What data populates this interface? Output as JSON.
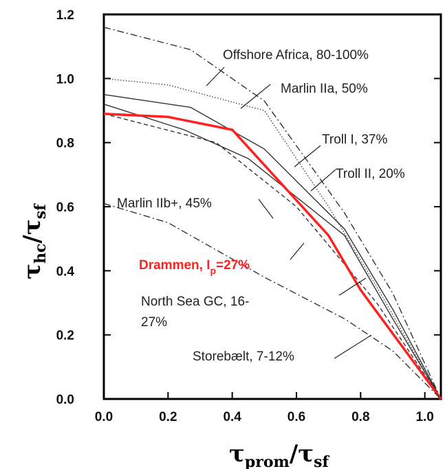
{
  "chart_data": {
    "type": "line",
    "xlabel": {
      "main": "τ",
      "sub": "prom",
      "sep": "/τ",
      "sub2": "sf"
    },
    "ylabel": {
      "main": "τ",
      "sub": "hc",
      "sep": "/τ",
      "sub2": "sf"
    },
    "xlim": [
      0,
      1.05
    ],
    "ylim": [
      0,
      1.2
    ],
    "xticks": [
      "0.0",
      "0.2",
      "0.4",
      "0.6",
      "0.8",
      "1.0"
    ],
    "yticks": [
      "0.0",
      "0.2",
      "0.4",
      "0.6",
      "0.8",
      "1.0",
      "1.2"
    ],
    "grid": false,
    "series": [
      {
        "name": "Offshore Africa, 80-100%",
        "style": "dashdot",
        "color": "#333333",
        "x": [
          0,
          0.27,
          0.5,
          0.75,
          0.9,
          1.05
        ],
        "y": [
          1.16,
          1.09,
          0.93,
          0.58,
          0.33,
          0
        ]
      },
      {
        "name": "Marlin IIa, 50%",
        "style": "dotted",
        "color": "#444444",
        "x": [
          0,
          0.2,
          0.5,
          0.7,
          0.85,
          1.05
        ],
        "y": [
          1.0,
          0.98,
          0.9,
          0.6,
          0.35,
          0
        ]
      },
      {
        "name": "Troll I, 37%",
        "style": "solid",
        "color": "#333333",
        "x": [
          0,
          0.27,
          0.5,
          0.75,
          0.9,
          1.05
        ],
        "y": [
          0.95,
          0.91,
          0.78,
          0.53,
          0.28,
          0
        ]
      },
      {
        "name": "Troll II, 20%",
        "style": "solid",
        "color": "#333333",
        "x": [
          0,
          0.25,
          0.45,
          0.75,
          0.9,
          1.05
        ],
        "y": [
          0.92,
          0.84,
          0.75,
          0.51,
          0.25,
          0
        ]
      },
      {
        "name": "Marlin IIb+, 45%",
        "style": "dashed",
        "color": "#333333",
        "x": [
          0,
          0.35,
          0.6,
          0.85,
          1.05
        ],
        "y": [
          0.89,
          0.8,
          0.6,
          0.3,
          0
        ]
      },
      {
        "name": "Drammen, Iₚ=27%",
        "style": "solid-thick",
        "color": "#ff2020",
        "x": [
          0,
          0.2,
          0.4,
          0.7,
          0.8,
          1.05
        ],
        "y": [
          0.89,
          0.88,
          0.84,
          0.51,
          0.34,
          0
        ]
      },
      {
        "name": "North Sea GC, 16-27%",
        "style": "dashdot",
        "color": "#333333",
        "x": [
          0,
          0.2,
          0.5,
          0.75,
          0.9,
          1.05
        ],
        "y": [
          0.61,
          0.55,
          0.38,
          0.25,
          0.15,
          0
        ]
      }
    ],
    "annotations": [
      {
        "text": "Offshore Africa, 80-100%",
        "series": "Offshore Africa, 80-100%"
      },
      {
        "text": "Marlin IIa, 50%",
        "series": "Marlin IIa, 50%"
      },
      {
        "text": "Troll I, 37%",
        "series": "Troll I, 37%"
      },
      {
        "text": "Troll II, 20%",
        "series": "Troll II, 20%"
      },
      {
        "text": "Marlin IIb+, 45%",
        "series": "Marlin IIb+, 45%"
      },
      {
        "text": "Drammen, I",
        "sub": "p",
        "rest": "=27%",
        "series": "Drammen, Iₚ=27%"
      },
      {
        "text": "North Sea GC, 16-",
        "text2": "27%",
        "series": "North Sea GC, 16-27%"
      },
      {
        "text": "Storebælt, 7-12%",
        "series": "Storebælt, 7-12%"
      }
    ]
  }
}
